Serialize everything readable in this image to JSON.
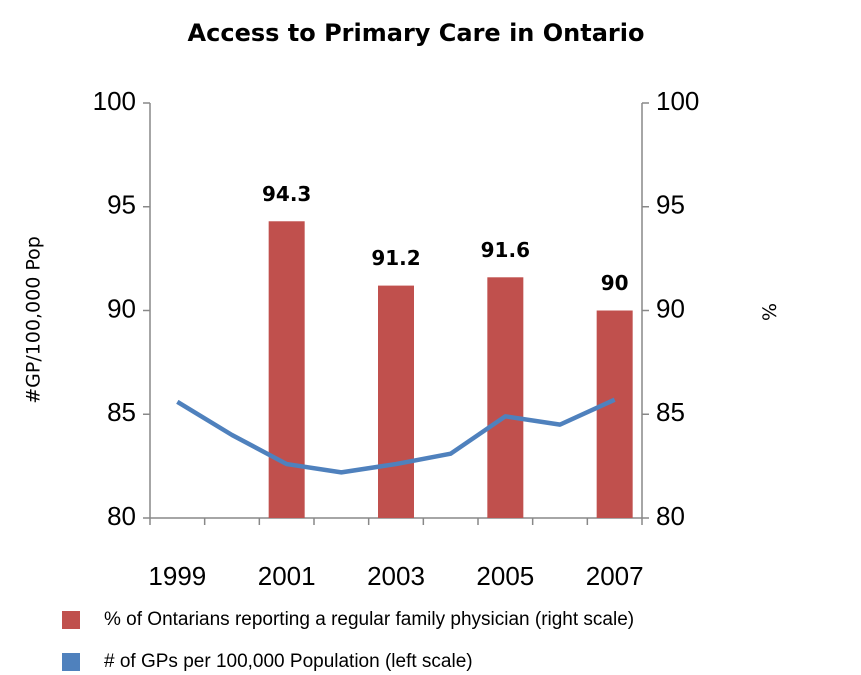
{
  "chart_data": {
    "type": "combo",
    "title": "Access to Primary Care in Ontario",
    "categories": [
      "1999",
      null,
      "2001",
      null,
      "2003",
      null,
      "2005",
      null,
      "2007"
    ],
    "series": [
      {
        "name": "% of Ontarians reporting a regular family physician (right scale)",
        "type": "bar",
        "axis": "y2",
        "color": "#c0504d",
        "values": [
          null,
          null,
          94.3,
          null,
          91.2,
          null,
          91.6,
          null,
          90
        ]
      },
      {
        "name": "# of GPs per 100,000 Population (left scale)",
        "type": "line",
        "axis": "y",
        "color": "#4f81bd",
        "values": [
          85.6,
          84.0,
          82.6,
          82.2,
          82.6,
          83.1,
          84.9,
          84.5,
          85.7
        ]
      }
    ],
    "ylabel": "#GP/100,000 Pop",
    "y2label": "%",
    "ylim": [
      80,
      100
    ],
    "yticks": [
      80,
      85,
      90,
      95,
      100
    ],
    "y2lim": [
      80,
      100
    ],
    "y2ticks": [
      80,
      85,
      90,
      95,
      100
    ],
    "legend": "bottom"
  }
}
